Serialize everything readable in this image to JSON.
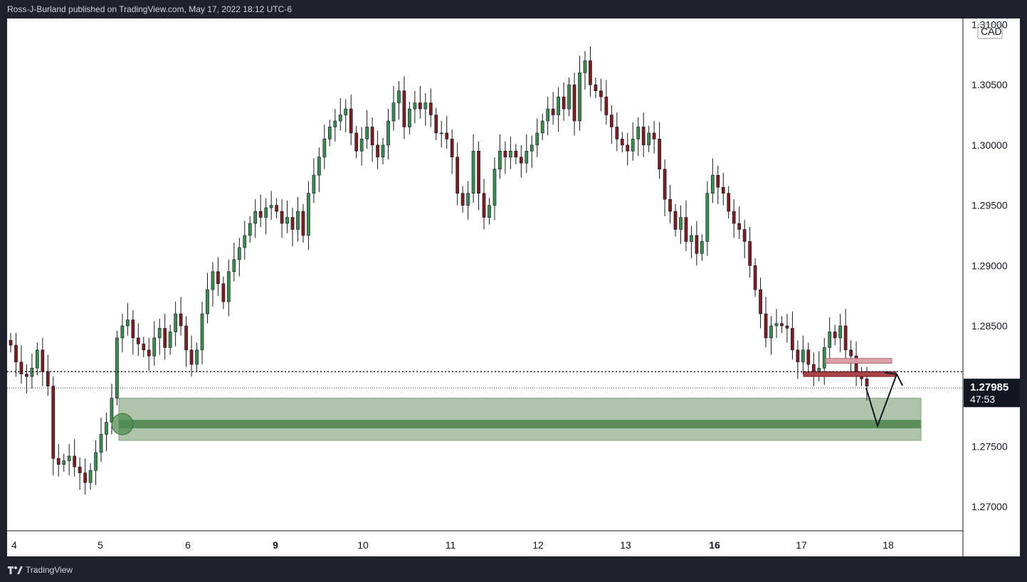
{
  "header": {
    "publisher_line": "Ross-J-Burland published on TradingView.com, May 17, 2022 18:12 UTC-6"
  },
  "footer": {
    "brand_label": "TradingView",
    "logo_icon": "tradingview-logo-icon"
  },
  "colors": {
    "up": "#26a69a",
    "up_body": "#3c8a4f",
    "down": "#7a1e22",
    "wick": "#131722",
    "zone_fill": "#a5bfa3",
    "zone_line": "#5a8f5c",
    "resistance_fill": "#d9a0a5",
    "support_fill": "#a84448",
    "price_label_bg": "#131722"
  },
  "chart_data": {
    "type": "candlestick",
    "symbol_currency": "CAD",
    "y_axis": {
      "ylim": [
        1.268,
        1.3105
      ],
      "ticks": [
        "1.27000",
        "1.27500",
        "1.28000",
        "1.28500",
        "1.29000",
        "1.29500",
        "1.30000",
        "1.30500",
        "1.31000"
      ],
      "top_partial_tick": "1.31000"
    },
    "x_axis": {
      "labels": [
        {
          "text": "4",
          "bold": false
        },
        {
          "text": "5",
          "bold": false
        },
        {
          "text": "6",
          "bold": false
        },
        {
          "text": "9",
          "bold": true
        },
        {
          "text": "10",
          "bold": false
        },
        {
          "text": "11",
          "bold": false
        },
        {
          "text": "12",
          "bold": false
        },
        {
          "text": "13",
          "bold": false
        },
        {
          "text": "16",
          "bold": true
        },
        {
          "text": "17",
          "bold": false
        },
        {
          "text": "18",
          "bold": false
        }
      ]
    },
    "last_price": {
      "value": "1.27985",
      "countdown": "47:53"
    },
    "ohlc_close_path": [
      1.2834,
      1.282,
      1.281,
      1.2808,
      1.2815,
      1.283,
      1.2812,
      1.28,
      1.274,
      1.2735,
      1.2738,
      1.2742,
      1.2733,
      1.2728,
      1.272,
      1.273,
      1.2745,
      1.276,
      1.277,
      1.279,
      1.284,
      1.285,
      1.2855,
      1.284,
      1.2835,
      1.283,
      1.2825,
      1.284,
      1.2848,
      1.2832,
      1.2845,
      1.286,
      1.285,
      1.283,
      1.2818,
      1.283,
      1.286,
      1.288,
      1.2895,
      1.2885,
      1.287,
      1.2895,
      1.2905,
      1.2915,
      1.2925,
      1.2935,
      1.2945,
      1.294,
      1.2948,
      1.295,
      1.2945,
      1.2935,
      1.294,
      1.293,
      1.2945,
      1.2925,
      1.296,
      1.2975,
      1.299,
      1.3005,
      1.3015,
      1.302,
      1.3025,
      1.303,
      1.301,
      1.2995,
      1.3005,
      1.3015,
      1.3,
      1.299,
      1.3,
      1.302,
      1.3035,
      1.3045,
      1.3015,
      1.303,
      1.3035,
      1.303,
      1.3035,
      1.3025,
      1.301,
      1.301,
      1.3005,
      1.299,
      1.296,
      1.295,
      1.296,
      1.2995,
      1.296,
      1.294,
      1.295,
      1.298,
      1.2995,
      1.299,
      1.2995,
      1.299,
      1.2985,
      1.2995,
      1.3,
      1.301,
      1.302,
      1.303,
      1.3025,
      1.304,
      1.303,
      1.305,
      1.302,
      1.306,
      1.307,
      1.305,
      1.3045,
      1.304,
      1.3025,
      1.3015,
      1.3005,
      1.3,
      1.2995,
      1.3005,
      1.3015,
      1.3,
      1.301,
      1.3005,
      1.298,
      1.2955,
      1.2945,
      1.293,
      1.294,
      1.292,
      1.2925,
      1.291,
      1.292,
      1.296,
      1.2975,
      1.2965,
      1.296,
      1.2945,
      1.2935,
      1.293,
      1.292,
      1.29,
      1.288,
      1.286,
      1.284,
      1.285,
      1.2852,
      1.285,
      1.2848,
      1.283,
      1.282,
      1.283,
      1.2818,
      1.2812,
      1.2815,
      1.2832,
      1.2845,
      1.284,
      1.285,
      1.283,
      1.2825,
      1.281,
      1.2806,
      1.28
    ],
    "annotations": {
      "demand_zone": {
        "top": 1.279,
        "bottom": 1.2755,
        "mid_top": 1.2772,
        "mid_bottom": 1.2765
      },
      "resistance_box": {
        "top": 1.2823,
        "bottom": 1.2819
      },
      "support_box": {
        "top": 1.2812,
        "bottom": 1.2808
      },
      "dotted_level": 1.2812,
      "last_price_line": 1.27985,
      "projection_path": [
        [
          1.27985,
          "now"
        ],
        [
          1.2767,
          "dip"
        ],
        [
          1.281,
          "rebound"
        ]
      ]
    }
  }
}
